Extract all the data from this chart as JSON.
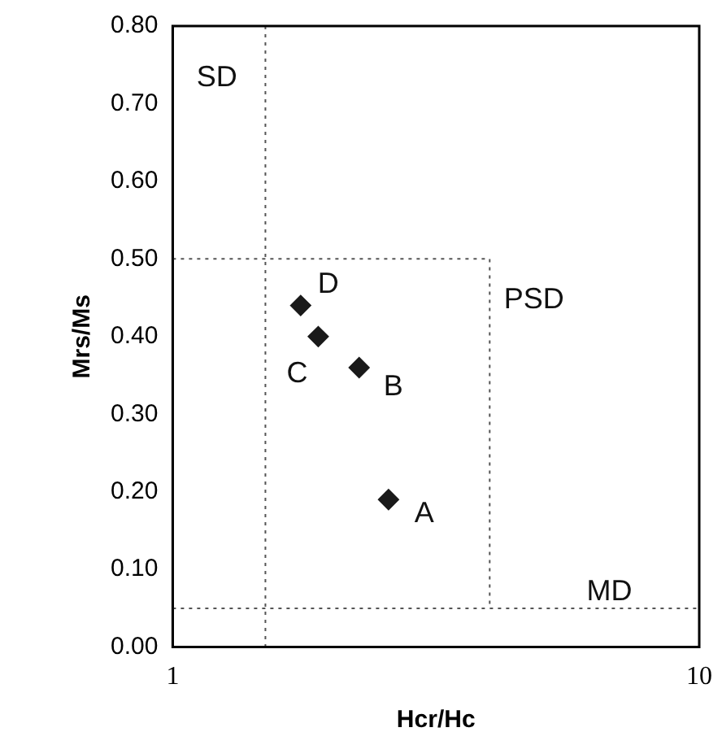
{
  "chart_data": {
    "type": "scatter",
    "xlabel": "Hcr/Hc",
    "ylabel": "Mrs/Ms",
    "log": "x",
    "xlim": [
      1,
      10
    ],
    "xticks": [
      1,
      10
    ],
    "ylim": [
      0,
      0.8
    ],
    "yticks": [
      {
        "value": 0,
        "label": "0.00"
      },
      {
        "value": 0.1,
        "label": "0.10"
      },
      {
        "value": 0.2,
        "label": "0.20"
      },
      {
        "value": 0.3,
        "label": "0.30"
      },
      {
        "value": 0.4,
        "label": "0.40"
      },
      {
        "value": 0.5,
        "label": "0.50"
      },
      {
        "value": 0.6,
        "label": "0.60"
      },
      {
        "value": 0.7,
        "label": "0.70"
      },
      {
        "value": 0.8,
        "label": "0.80"
      }
    ],
    "grid": false,
    "legend": false,
    "marker": "diamond",
    "series": [
      {
        "color": "#1a1a1a",
        "x": [
          2.57,
          2.26,
          1.89,
          1.75
        ],
        "values": [
          0.19,
          0.36,
          0.4,
          0.44
        ]
      },
      {
        "type": "line",
        "color": "#555555",
        "marker": "none",
        "line_style": "dotted",
        "x": [
          1,
          4,
          4
        ],
        "values": [
          0.5,
          0.5,
          0.05
        ]
      }
    ],
    "ref_lines": [
      {
        "axis": "x",
        "value": 1.5,
        "color": "#555555",
        "line_style": "dotted"
      },
      {
        "axis": "y",
        "value": 0.05,
        "color": "#555555",
        "line_style": "dotted"
      }
    ],
    "annotations": [
      {
        "text": "A",
        "x": 2.57,
        "y": 0.19
      },
      {
        "text": "B",
        "x": 2.26,
        "y": 0.36
      },
      {
        "text": "C",
        "x": 1.89,
        "y": 0.4
      },
      {
        "text": "D",
        "x": 1.75,
        "y": 0.44
      },
      "SD",
      "PSD",
      {
        "text": "MD",
        "x": 6.75,
        "y": 0.05
      }
    ]
  }
}
